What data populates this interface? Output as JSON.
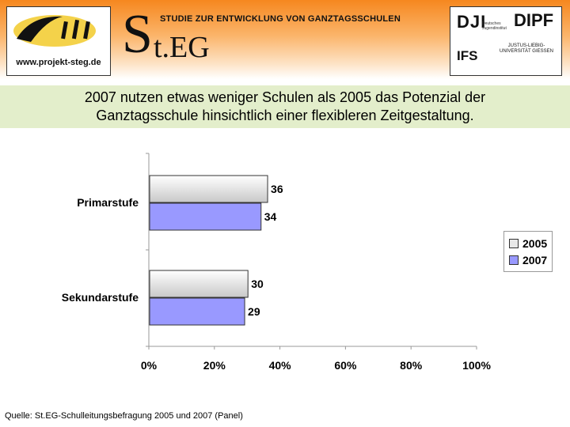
{
  "header": {
    "website": "www.projekt-steg.de",
    "steg_letter": "S",
    "steg_rest": "t.EG",
    "subtitle": "STUDIE ZUR ENTWICKLUNG VON GANZTAGSSCHULEN",
    "logo_dji": "DJI",
    "logo_dji_sub": "Deutsches Jugendinstitut",
    "logo_dipf": "DIPF",
    "logo_ifs": "IFS",
    "logo_jlu": "JUSTUS-LIEBIG-UNIVERSITÄT GIESSEN"
  },
  "banner": {
    "text": "2007 nutzen etwas weniger Schulen als 2005 das Potenzial der Ganztagsschule hinsichtlich einer flexibleren Zeitgestaltung."
  },
  "source": "Quelle: St.EG-Schulleitungsbefragung 2005 und 2007 (Panel)",
  "colors": {
    "2005": "#e8e8e8",
    "2007": "#9999ff",
    "header": "#f6871f",
    "banner": "#e3eecb"
  },
  "chart_data": {
    "type": "bar",
    "orientation": "horizontal",
    "categories": [
      "Primarstufe",
      "Sekundarstufe"
    ],
    "series": [
      {
        "name": "2005",
        "values": [
          36,
          30
        ]
      },
      {
        "name": "2007",
        "values": [
          34,
          29
        ]
      }
    ],
    "xlim": [
      0,
      100
    ],
    "xticks": [
      "0%",
      "20%",
      "40%",
      "60%",
      "80%",
      "100%"
    ],
    "legend": "right",
    "grid": false
  }
}
